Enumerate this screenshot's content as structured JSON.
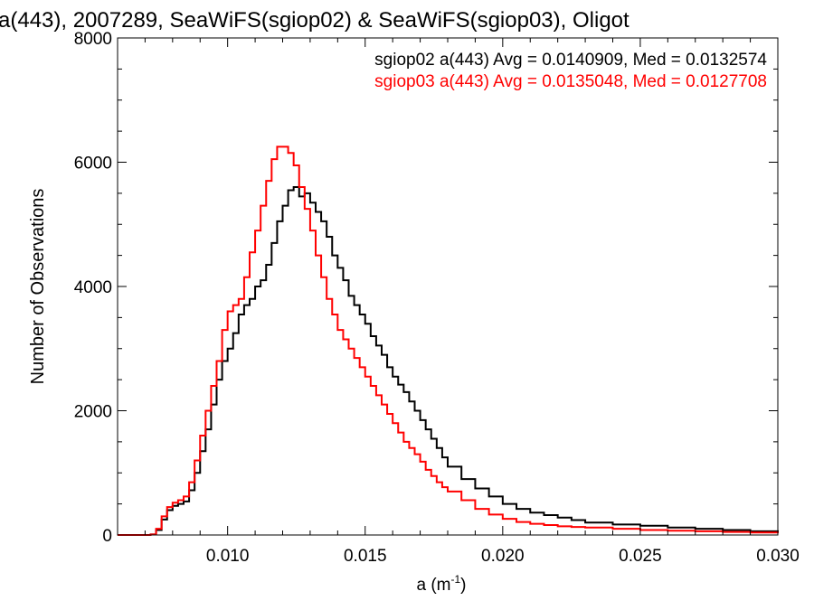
{
  "chart_data": {
    "type": "line",
    "title": "a(443), 2007289, SeaWiFS(sgiop02) & SeaWiFS(sgiop03), Oligot",
    "xlabel": "a (m",
    "xlabel_sup": "-1",
    "xlabel_close": ")",
    "ylabel": "Number of Observations",
    "xlim": [
      0.006,
      0.03
    ],
    "ylim": [
      0,
      8000
    ],
    "xticks": [
      0.01,
      0.015,
      0.02,
      0.025,
      0.03
    ],
    "xtick_labels": [
      "0.010",
      "0.015",
      "0.020",
      "0.025",
      "0.030"
    ],
    "yticks": [
      0,
      2000,
      4000,
      6000,
      8000
    ],
    "ytick_labels": [
      "0",
      "2000",
      "4000",
      "6000",
      "8000"
    ],
    "grid": false,
    "legend": "top-right",
    "series": [
      {
        "name": "sgiop02 a(443) Avg = 0.0140909, Med = 0.0132574",
        "color": "#000000",
        "x": [
          0.006,
          0.007,
          0.0072,
          0.0074,
          0.0076,
          0.0078,
          0.008,
          0.0082,
          0.0084,
          0.0086,
          0.0088,
          0.009,
          0.0092,
          0.0094,
          0.0096,
          0.0098,
          0.01,
          0.0102,
          0.0104,
          0.0106,
          0.0108,
          0.011,
          0.0112,
          0.0114,
          0.0116,
          0.0118,
          0.012,
          0.0122,
          0.0124,
          0.0126,
          0.0128,
          0.013,
          0.0132,
          0.0134,
          0.0136,
          0.0138,
          0.014,
          0.0142,
          0.0144,
          0.0146,
          0.0148,
          0.015,
          0.0152,
          0.0154,
          0.0156,
          0.0158,
          0.016,
          0.0162,
          0.0164,
          0.0166,
          0.0168,
          0.017,
          0.0172,
          0.0174,
          0.0176,
          0.0178,
          0.018,
          0.0185,
          0.019,
          0.0195,
          0.02,
          0.0205,
          0.021,
          0.0215,
          0.022,
          0.0225,
          0.023,
          0.024,
          0.025,
          0.026,
          0.027,
          0.028,
          0.029,
          0.03
        ],
        "y": [
          0,
          0,
          10,
          80,
          250,
          400,
          470,
          500,
          540,
          720,
          1000,
          1350,
          1700,
          2100,
          2500,
          2800,
          3000,
          3250,
          3550,
          3700,
          3800,
          4000,
          4100,
          4350,
          4700,
          5050,
          5300,
          5550,
          5600,
          5450,
          5500,
          5350,
          5200,
          5050,
          4800,
          4500,
          4300,
          4100,
          3850,
          3700,
          3550,
          3400,
          3200,
          3050,
          2900,
          2700,
          2550,
          2420,
          2300,
          2150,
          2000,
          1850,
          1700,
          1550,
          1400,
          1250,
          1100,
          900,
          750,
          620,
          500,
          420,
          360,
          320,
          280,
          240,
          200,
          170,
          150,
          120,
          100,
          80,
          60,
          50
        ]
      },
      {
        "name": "sgiop03 a(443) Avg = 0.0135048, Med = 0.0127708",
        "color": "#ff0000",
        "x": [
          0.006,
          0.007,
          0.0072,
          0.0074,
          0.0076,
          0.0078,
          0.008,
          0.0082,
          0.0084,
          0.0086,
          0.0088,
          0.009,
          0.0092,
          0.0094,
          0.0096,
          0.0098,
          0.01,
          0.0102,
          0.0104,
          0.0106,
          0.0108,
          0.011,
          0.0112,
          0.0114,
          0.0116,
          0.0118,
          0.012,
          0.0122,
          0.0124,
          0.0126,
          0.0128,
          0.013,
          0.0132,
          0.0134,
          0.0136,
          0.0138,
          0.014,
          0.0142,
          0.0144,
          0.0146,
          0.0148,
          0.015,
          0.0152,
          0.0154,
          0.0156,
          0.0158,
          0.016,
          0.0162,
          0.0164,
          0.0166,
          0.0168,
          0.017,
          0.0172,
          0.0174,
          0.0176,
          0.0178,
          0.018,
          0.0185,
          0.019,
          0.0195,
          0.02,
          0.0205,
          0.021,
          0.0215,
          0.022,
          0.0225,
          0.023,
          0.024,
          0.025,
          0.026,
          0.027,
          0.028,
          0.029,
          0.03
        ],
        "y": [
          0,
          0,
          10,
          100,
          300,
          450,
          520,
          560,
          620,
          850,
          1200,
          1600,
          2000,
          2400,
          2800,
          3300,
          3600,
          3700,
          3800,
          4150,
          4550,
          4900,
          5300,
          5700,
          6050,
          6250,
          6250,
          6150,
          5950,
          5600,
          5250,
          4900,
          4500,
          4150,
          3800,
          3550,
          3300,
          3150,
          3000,
          2850,
          2700,
          2550,
          2400,
          2250,
          2100,
          1950,
          1800,
          1650,
          1500,
          1400,
          1300,
          1180,
          1050,
          950,
          850,
          770,
          700,
          560,
          420,
          330,
          260,
          210,
          180,
          160,
          140,
          130,
          120,
          100,
          80,
          70,
          60,
          50,
          40,
          30
        ]
      }
    ]
  }
}
